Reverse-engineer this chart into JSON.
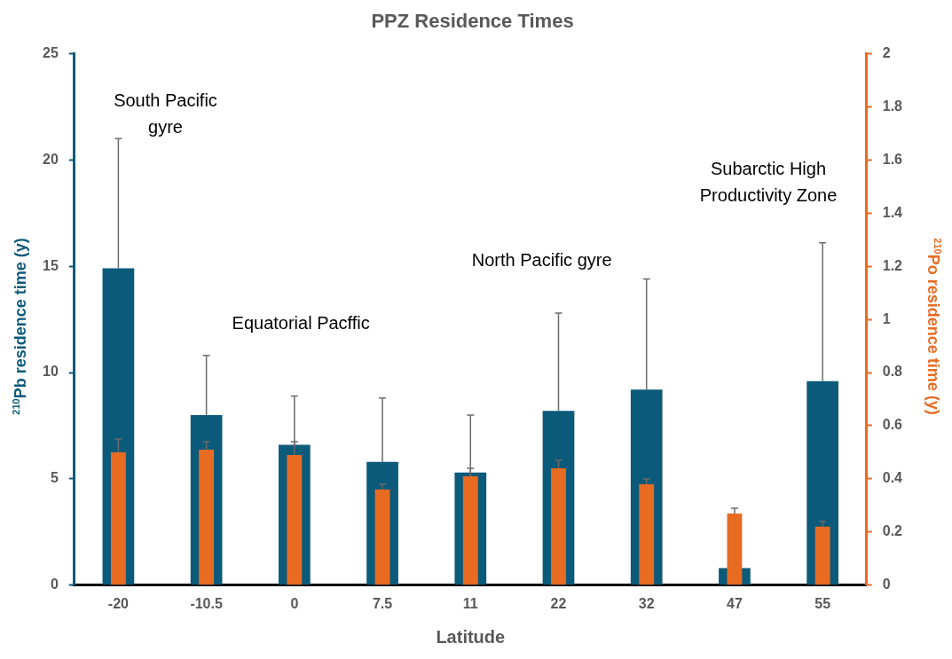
{
  "chart_data": {
    "type": "bar",
    "title": "PPZ Residence Times",
    "xlabel": "Latitude",
    "ylabel": "$^{210}$Pb residence time (y)",
    "y2label": "$^{210}$Po residence time (y)",
    "categories": [
      "-20",
      "-10.5",
      "0",
      "7.5",
      "11",
      "22",
      "32",
      "47",
      "55"
    ],
    "series": [
      {
        "color": "#0b5a7a",
        "values": [
          14.9,
          8.0,
          6.6,
          5.8,
          5.3,
          8.2,
          9.2,
          0.8,
          9.6
        ],
        "errors": [
          [
            14.9,
            21.0
          ],
          [
            8.0,
            10.8
          ],
          [
            6.6,
            8.9
          ],
          [
            5.8,
            8.8
          ],
          [
            5.3,
            8.0
          ],
          [
            8.2,
            12.8
          ],
          [
            9.2,
            14.4
          ],
          null,
          [
            9.6,
            16.1
          ]
        ]
      },
      {
        "color": "#e86b22",
        "axis": "y2",
        "values": [
          0.5,
          0.51,
          0.49,
          0.36,
          0.41,
          0.44,
          0.38,
          0.27,
          0.22
        ],
        "errors": [
          [
            0.5,
            0.55
          ],
          [
            0.51,
            0.54
          ],
          [
            0.49,
            0.54
          ],
          [
            0.36,
            0.38
          ],
          [
            0.41,
            0.44
          ],
          [
            0.44,
            0.47
          ],
          [
            0.38,
            0.4
          ],
          [
            0.27,
            0.29
          ],
          [
            0.22,
            0.24
          ]
        ]
      }
    ],
    "ylim": [
      0,
      25
    ],
    "yticks": [
      0,
      5,
      10,
      15,
      20,
      25
    ],
    "y2lim": [
      0,
      2
    ],
    "y2ticks": [
      0,
      0.2,
      0.4,
      0.6,
      0.8,
      1,
      1.2,
      1.4,
      1.6,
      1.8,
      2
    ],
    "annotations": [
      "South Pacific gyre",
      "Equatorial Pacffic",
      "North Pacific gyre",
      "Subarctic High Productivity Zone"
    ],
    "grid": false,
    "legend": false
  }
}
